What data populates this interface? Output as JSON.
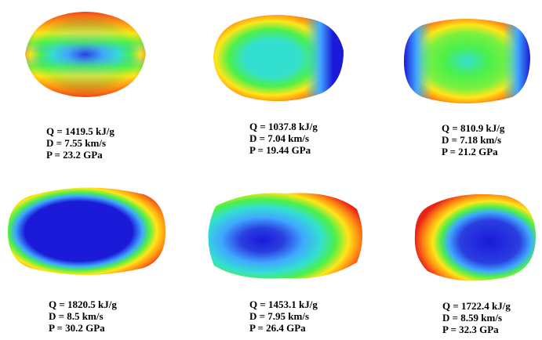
{
  "figure": {
    "colors": {
      "negative": "#1a1ad8",
      "low": "#3fa8ff",
      "mid_low": "#33e0d0",
      "mid": "#4cf04a",
      "mid_high": "#ffe619",
      "high": "#ff8a12",
      "positive": "#e8231a"
    },
    "panels": [
      {
        "molecule": "Q = 1419.5 kJ/g",
        "q": "Q = 1419.5 kJ/g",
        "d": "D = 7.55 km/s",
        "p": "P = 23.2 GPa"
      },
      {
        "molecule": "Q = 1037.8 kJ/g",
        "q": "Q = 1037.8 kJ/g",
        "d": "D = 7.04 km/s",
        "p": "P = 19.44 GPa"
      },
      {
        "molecule": "Q = 810.9 kJ/g",
        "q": "Q = 810.9 kJ/g",
        "d": "D = 7.18 km/s",
        "p": "P = 21.2 GPa"
      },
      {
        "molecule": "Q = 1820.5 kJ/g",
        "q": "Q = 1820.5 kJ/g",
        "d": "D = 8.5 km/s",
        "p": "P = 30.2 GPa"
      },
      {
        "molecule": "Q = 1453.1 kJ/g",
        "q": "Q = 1453.1 kJ/g",
        "d": "D = 7.95 km/s",
        "p": "P = 26.4 GPa"
      },
      {
        "molecule": "Q = 1722.4 kJ/g",
        "q": "Q = 1722.4 kJ/g",
        "d": "D = 8.59 km/s",
        "p": "P = 32.3 GPa"
      }
    ]
  }
}
